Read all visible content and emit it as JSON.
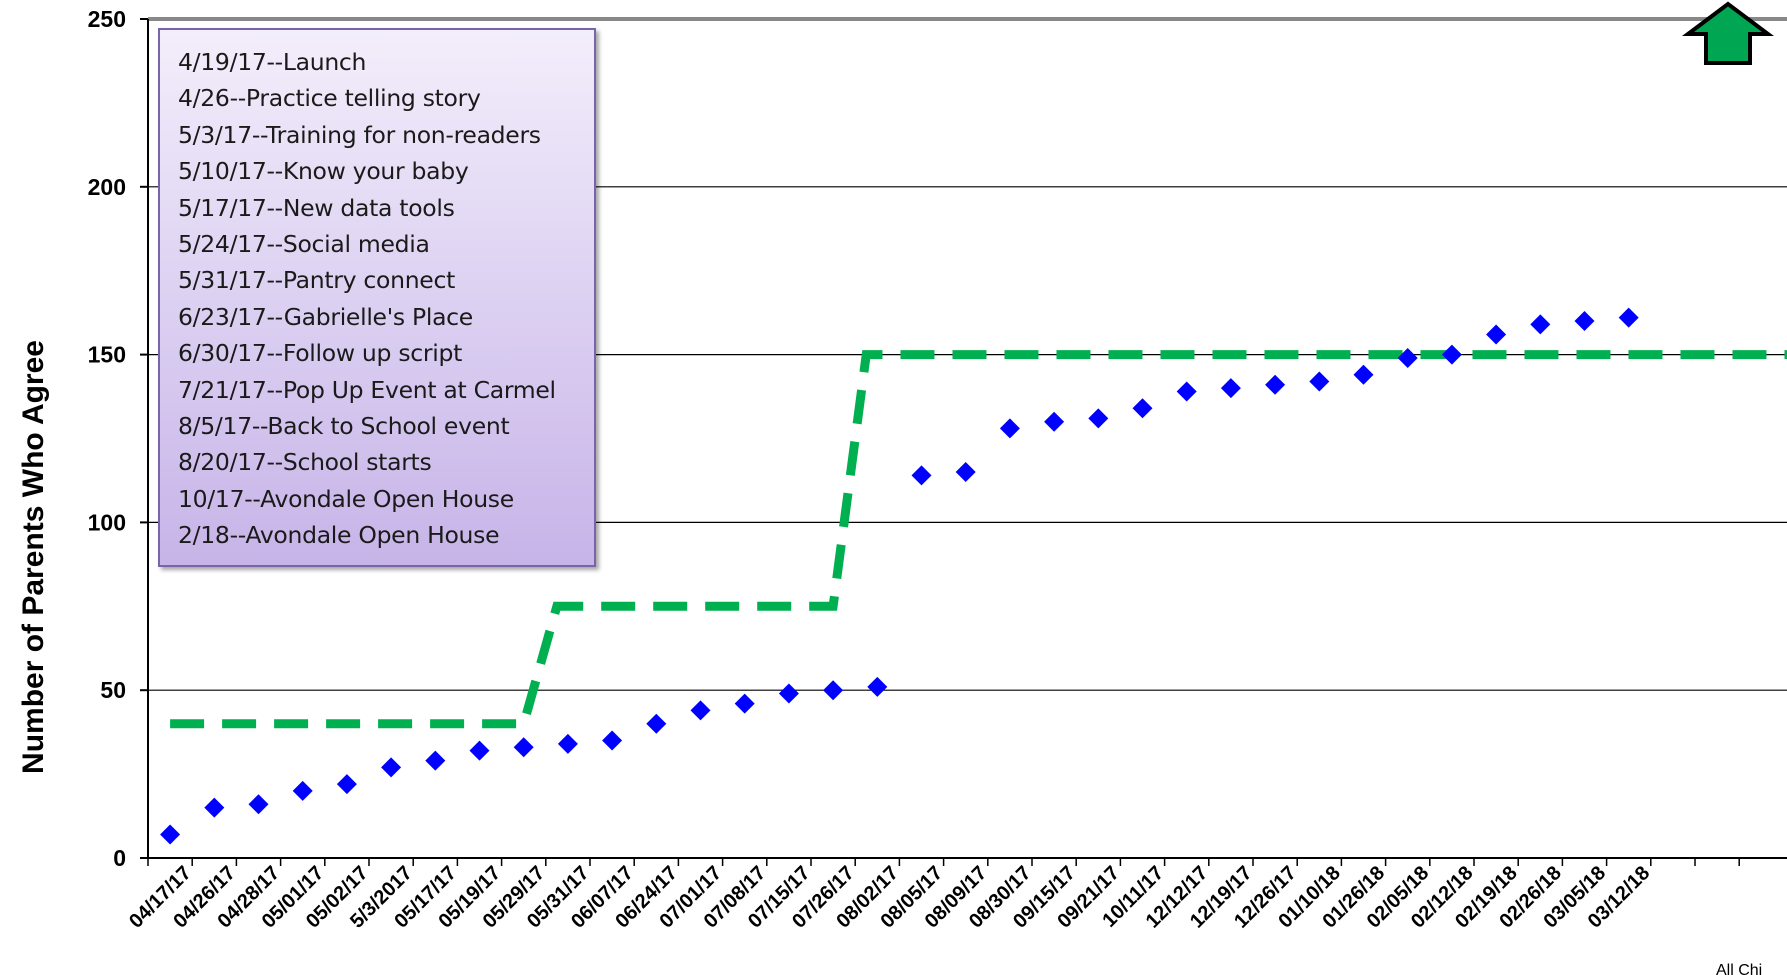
{
  "chart_data": {
    "type": "scatter",
    "title": "",
    "xlabel": "",
    "ylabel": "Number of Parents Who Agree",
    "ylim": [
      0,
      250
    ],
    "yticks": [
      0,
      50,
      100,
      150,
      200,
      250
    ],
    "grid": true,
    "categories": [
      "04/17/17",
      "04/26/17",
      "04/28/17",
      "05/01/17",
      "05/02/17",
      "5/3/2017",
      "05/17/17",
      "05/19/17",
      "05/29/17",
      "05/31/17",
      "06/07/17",
      "06/24/17",
      "07/01/17",
      "07/08/17",
      "07/15/17",
      "07/26/17",
      "08/02/17",
      "08/05/17",
      "08/09/17",
      "08/30/17",
      "09/15/17",
      "09/21/17",
      "10/11/17",
      "12/12/17",
      "12/19/17",
      "12/26/17",
      "01/10/18",
      "01/26/18",
      "02/05/18",
      "02/12/18",
      "02/19/18",
      "02/26/18",
      "03/05/18",
      "03/12/18",
      "",
      ""
    ],
    "series": [
      {
        "role": "actual",
        "marker": "diamond",
        "color": "#0000ff",
        "values": [
          7,
          15,
          16,
          20,
          22,
          27,
          29,
          32,
          33,
          34,
          35,
          40,
          44,
          46,
          49,
          50,
          51,
          114,
          115,
          128,
          130,
          131,
          134,
          139,
          140,
          141,
          142,
          144,
          149,
          150,
          156,
          159,
          160,
          161
        ]
      },
      {
        "role": "goal",
        "line_style": "dashed",
        "color": "#00b050",
        "values": [
          40,
          40,
          40,
          40,
          40,
          40,
          40,
          40,
          40,
          75,
          75,
          75,
          75,
          75,
          75,
          75,
          150,
          150,
          150,
          150,
          150,
          150,
          150,
          150,
          150,
          150,
          150,
          150,
          150,
          150,
          150,
          150,
          150,
          150,
          150,
          150
        ]
      }
    ],
    "annotations": [
      "4/19/17--Launch",
      "4/26--Practice telling story",
      "5/3/17--Training for non-readers",
      "5/10/17--Know your baby",
      "5/17/17--New data tools",
      "5/24/17--Social media",
      "5/31/17--Pantry connect",
      "6/23/17--Gabrielle's Place",
      "6/30/17--Follow up script",
      "7/21/17--Pop Up Event at Carmel",
      "8/5/17--Back to School event",
      "8/20/17--School starts",
      "10/17--Avondale Open House",
      "2/18--Avondale Open House"
    ]
  },
  "footer_text": "All Chi",
  "colors": {
    "actual": "#0000ff",
    "goal": "#00b050",
    "arrow": "#00a651",
    "legend_border": "#7a64a8"
  },
  "icons": {
    "up_arrow": "up-arrow-icon"
  }
}
